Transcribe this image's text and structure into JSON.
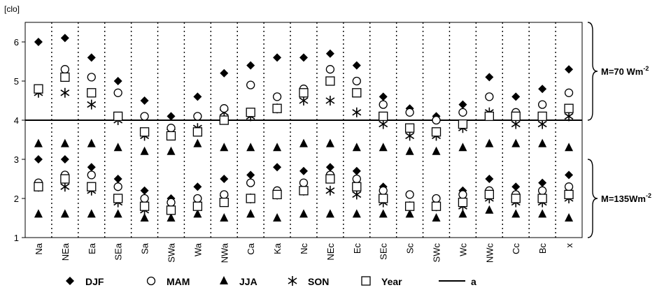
{
  "chart_data": {
    "type": "scatter",
    "unit_label": "[clo]",
    "ylim": [
      1,
      6.5
    ],
    "yticks": [
      "1",
      "2",
      "3",
      "4",
      "5",
      "6"
    ],
    "grid": "vertical dotted separators between categories",
    "legend_position": "bottom",
    "categories": [
      "Na",
      "NEa",
      "Ea",
      "SEa",
      "Sa",
      "SWa",
      "Wa",
      "NWa",
      "Ca",
      "Ka",
      "Nc",
      "NEc",
      "Ec",
      "SEc",
      "Sc",
      "SWc",
      "Wc",
      "NWc",
      "Cc",
      "Bc",
      "x"
    ],
    "series": [
      {
        "name": "DJF",
        "marker": "diamond",
        "values": [
          6.0,
          6.1,
          5.6,
          5.0,
          4.5,
          4.1,
          4.6,
          5.2,
          5.4,
          5.6,
          5.6,
          5.7,
          5.4,
          4.6,
          4.3,
          4.1,
          4.4,
          5.1,
          4.6,
          4.8,
          5.3
        ],
        "values_135": [
          3.0,
          3.0,
          2.8,
          2.5,
          2.2,
          2.0,
          2.3,
          2.5,
          2.6,
          2.8,
          2.7,
          2.8,
          2.7,
          2.3,
          2.1,
          2.0,
          2.2,
          2.5,
          2.3,
          2.4,
          2.6
        ]
      },
      {
        "name": "MAM",
        "marker": "circle",
        "values": [
          4.8,
          5.3,
          5.1,
          4.7,
          4.1,
          3.8,
          4.1,
          4.3,
          4.9,
          4.6,
          4.8,
          5.3,
          5.0,
          4.4,
          4.2,
          4.0,
          4.2,
          4.6,
          4.2,
          4.4,
          4.7
        ],
        "values_135": [
          2.4,
          2.6,
          2.6,
          2.3,
          2.0,
          1.9,
          2.0,
          2.1,
          2.4,
          2.2,
          2.4,
          2.6,
          2.5,
          2.2,
          2.1,
          2.0,
          2.1,
          2.2,
          2.1,
          2.2,
          2.3
        ]
      },
      {
        "name": "JJA",
        "marker": "triangle",
        "values": [
          3.4,
          3.4,
          3.4,
          3.3,
          3.2,
          3.2,
          3.4,
          3.3,
          3.3,
          3.3,
          3.4,
          3.4,
          3.3,
          3.3,
          3.2,
          3.2,
          3.3,
          3.4,
          3.4,
          3.4,
          3.3
        ],
        "values_135": [
          1.6,
          1.6,
          1.6,
          1.6,
          1.5,
          1.5,
          1.6,
          1.5,
          1.6,
          1.5,
          1.6,
          1.6,
          1.6,
          1.6,
          1.6,
          1.5,
          1.6,
          1.7,
          1.6,
          1.6,
          1.5
        ]
      },
      {
        "name": "SON",
        "marker": "asterisk",
        "values": [
          4.7,
          4.7,
          4.4,
          4.0,
          3.6,
          3.7,
          3.8,
          4.2,
          4.1,
          4.3,
          4.5,
          4.5,
          4.2,
          3.9,
          3.6,
          3.6,
          3.8,
          4.2,
          3.9,
          3.9,
          4.1
        ],
        "values_135": [
          2.3,
          2.3,
          2.2,
          1.9,
          1.7,
          1.7,
          1.8,
          2.0,
          2.0,
          2.1,
          2.2,
          2.2,
          2.1,
          1.9,
          1.8,
          1.8,
          1.8,
          2.0,
          1.9,
          1.9,
          2.0
        ]
      },
      {
        "name": "Year",
        "marker": "square",
        "values": [
          4.8,
          5.1,
          4.7,
          4.1,
          3.7,
          3.6,
          3.7,
          4.0,
          4.2,
          4.3,
          4.7,
          5.0,
          4.7,
          4.1,
          3.8,
          3.7,
          3.9,
          4.1,
          4.1,
          4.1,
          4.3
        ],
        "values_135": [
          2.3,
          2.5,
          2.3,
          2.0,
          1.8,
          1.7,
          1.8,
          1.9,
          2.0,
          2.1,
          2.2,
          2.5,
          2.3,
          2.0,
          1.8,
          1.8,
          1.9,
          2.1,
          2.0,
          2.0,
          2.1
        ]
      }
    ],
    "reference_line": {
      "name": "a",
      "value": 4.0
    },
    "brackets": [
      {
        "label_text": "M=70 Wm",
        "label_sup": "-2",
        "range": [
          4.0,
          6.5
        ]
      },
      {
        "label_text": "M=135Wm",
        "label_sup": "-2",
        "range": [
          1.0,
          3.0
        ]
      }
    ]
  }
}
